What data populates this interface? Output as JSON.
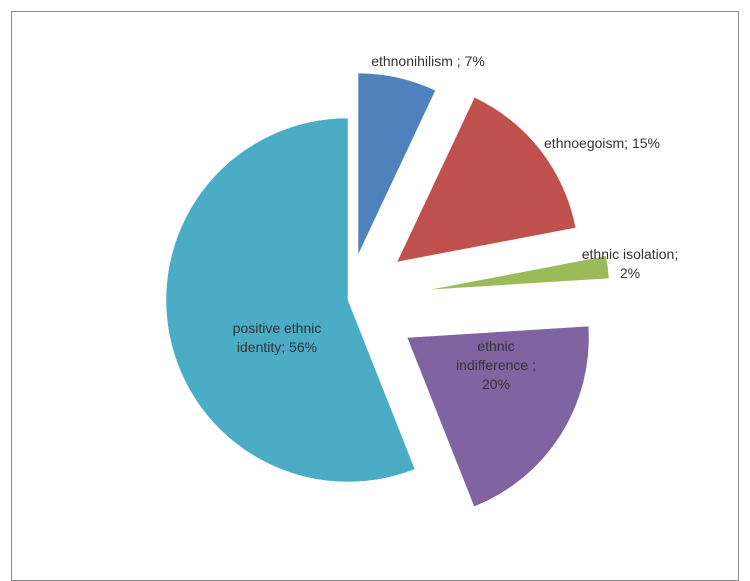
{
  "chart_data": {
    "type": "pie",
    "title": "",
    "exploded": true,
    "start_angle_deg": 0,
    "direction": "clockwise",
    "slices": [
      {
        "label": "ethnonihilism",
        "value": 7,
        "label_text": [
          "ethnonihilism ; 7%"
        ],
        "color": "#4F81BD"
      },
      {
        "label": "ethnoegoism",
        "value": 15,
        "label_text": [
          "ethnoegoism; 15%"
        ],
        "color": "#C0504D"
      },
      {
        "label": "ethnic isolation",
        "value": 2,
        "label_text": [
          "ethnic isolation;",
          "2%"
        ],
        "color": "#9BBB59"
      },
      {
        "label": "ethnic indifference",
        "value": 20,
        "label_text": [
          "ethnic",
          "indifference ;",
          "20%"
        ],
        "color": "#8064A2"
      },
      {
        "label": "positive ethnic identity",
        "value": 56,
        "label_text": [
          "positive ethnic",
          "identity; 56%"
        ],
        "color": "#4BACC6"
      }
    ]
  }
}
